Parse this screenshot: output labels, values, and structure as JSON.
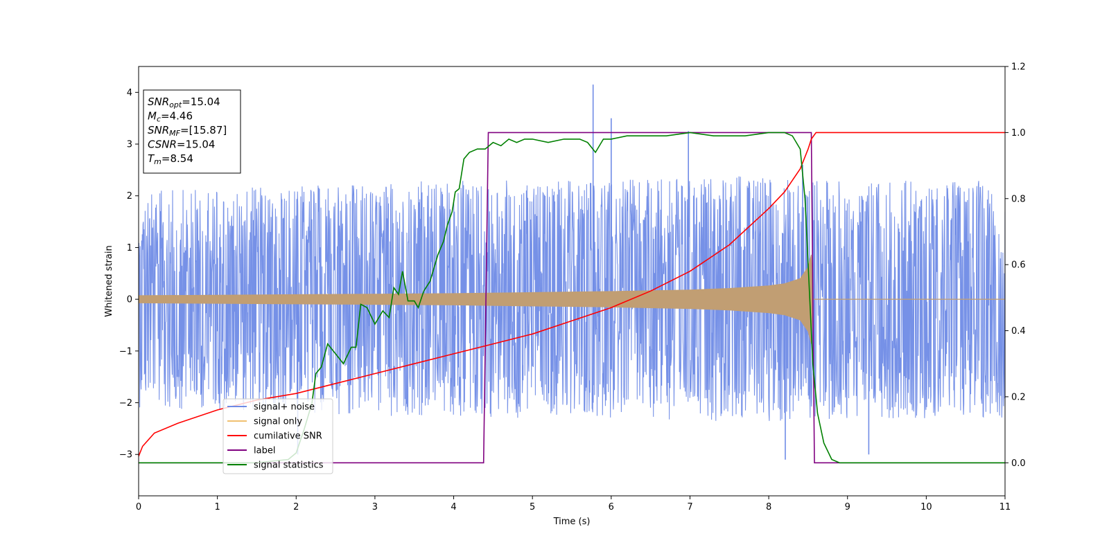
{
  "chart_data": {
    "type": "line",
    "xlabel": "Time (s)",
    "ylabel": "Whitened strain",
    "xlim": [
      0,
      11
    ],
    "ylim": [
      -3.8,
      4.5
    ],
    "y2lim": [
      -0.1,
      1.2
    ],
    "x_ticks": [
      0,
      1,
      2,
      3,
      4,
      5,
      6,
      7,
      8,
      9,
      10,
      11
    ],
    "y_ticks": [
      -3,
      -2,
      -1,
      0,
      1,
      2,
      3,
      4
    ],
    "y2_ticks": [
      0.0,
      0.2,
      0.4,
      0.6,
      0.8,
      1.0,
      1.2
    ],
    "x_tick_labels": [
      "0",
      "1",
      "2",
      "3",
      "4",
      "5",
      "6",
      "7",
      "8",
      "9",
      "10",
      "11"
    ],
    "y_tick_labels": [
      "−3",
      "−2",
      "−1",
      "0",
      "1",
      "2",
      "3",
      "4"
    ],
    "y2_tick_labels": [
      "0.0",
      "0.2",
      "0.4",
      "0.6",
      "0.8",
      "1.0",
      "1.2"
    ],
    "info_box": [
      {
        "base": "SNR",
        "sub": "opt",
        "value": "=15.04"
      },
      {
        "base": "M",
        "sub": "c",
        "value": "=4.46"
      },
      {
        "base": "SNR",
        "sub": "MF",
        "value": "=[15.87]"
      },
      {
        "base": "CSNR",
        "sub": "",
        "value": "=15.04"
      },
      {
        "base": "T",
        "sub": "m",
        "value": "=8.54"
      }
    ],
    "legend": {
      "placement": "lower-left",
      "entries": [
        {
          "label": "signal+ noise",
          "color": "#6f8be6"
        },
        {
          "label": "signal only",
          "color": "#f0c070"
        },
        {
          "label": "cumilative SNR",
          "color": "#ff0000"
        },
        {
          "label": "label",
          "color": "#800080"
        },
        {
          "label": "signal statistics",
          "color": "#008000"
        }
      ]
    },
    "series": [
      {
        "name": "signal+ noise",
        "axis": "left",
        "color": "#6f8be6",
        "kind": "noise_band",
        "envelope": [
          [
            0,
            2.1
          ],
          [
            2,
            2.2
          ],
          [
            4,
            2.3
          ],
          [
            6,
            2.3
          ],
          [
            8,
            2.4
          ],
          [
            9,
            2.3
          ],
          [
            11,
            2.3
          ]
        ],
        "spikes": [
          [
            5.77,
            4.15
          ],
          [
            5.77,
            -2.0
          ],
          [
            6.0,
            3.5
          ],
          [
            6.98,
            3.25
          ],
          [
            8.43,
            2.6
          ],
          [
            8.21,
            -3.1
          ],
          [
            9.27,
            -3.0
          ],
          [
            2.02,
            -3.0
          ]
        ]
      },
      {
        "name": "signal only",
        "axis": "left",
        "color": "#c19e73",
        "kind": "chirp_envelope",
        "x": [
          0,
          1,
          2,
          3,
          4,
          5,
          6,
          7,
          7.5,
          8,
          8.2,
          8.4,
          8.5,
          8.54,
          8.56,
          11
        ],
        "amplitude": [
          0.07,
          0.08,
          0.09,
          0.1,
          0.11,
          0.13,
          0.15,
          0.18,
          0.21,
          0.26,
          0.3,
          0.4,
          0.62,
          0.86,
          0.0,
          0.0
        ]
      },
      {
        "name": "cumilative SNR",
        "axis": "right",
        "color": "#ff0000",
        "x": [
          0.0,
          0.05,
          0.2,
          0.5,
          1.0,
          1.5,
          2.0,
          2.5,
          3.0,
          3.5,
          4.0,
          4.5,
          5.0,
          5.5,
          6.0,
          6.5,
          7.0,
          7.5,
          8.0,
          8.2,
          8.4,
          8.5,
          8.54,
          8.6,
          11.0
        ],
        "y": [
          0.02,
          0.05,
          0.09,
          0.12,
          0.16,
          0.19,
          0.21,
          0.24,
          0.27,
          0.3,
          0.33,
          0.36,
          0.39,
          0.43,
          0.47,
          0.52,
          0.58,
          0.66,
          0.77,
          0.82,
          0.89,
          0.95,
          0.98,
          1.0,
          1.0
        ]
      },
      {
        "name": "label",
        "axis": "right",
        "color": "#800080",
        "x": [
          0,
          4.38,
          4.44,
          8.54,
          8.58,
          11
        ],
        "y": [
          0,
          0,
          1,
          1,
          0,
          0
        ]
      },
      {
        "name": "signal statistics",
        "axis": "right",
        "color": "#008000",
        "x": [
          0,
          1.5,
          1.9,
          2.0,
          2.1,
          2.2,
          2.25,
          2.32,
          2.4,
          2.5,
          2.6,
          2.7,
          2.76,
          2.82,
          2.9,
          3.0,
          3.1,
          3.18,
          3.24,
          3.3,
          3.35,
          3.42,
          3.5,
          3.55,
          3.62,
          3.7,
          3.8,
          3.87,
          3.92,
          3.98,
          4.02,
          4.07,
          4.13,
          4.2,
          4.3,
          4.4,
          4.5,
          4.6,
          4.7,
          4.8,
          4.9,
          5.0,
          5.2,
          5.4,
          5.6,
          5.7,
          5.8,
          5.9,
          6.0,
          6.2,
          6.5,
          6.7,
          7.0,
          7.3,
          7.5,
          7.7,
          8.0,
          8.2,
          8.3,
          8.4,
          8.46,
          8.52,
          8.56,
          8.62,
          8.7,
          8.8,
          8.9,
          9.0,
          11
        ],
        "y": [
          0.0,
          0.0,
          0.01,
          0.03,
          0.1,
          0.18,
          0.27,
          0.29,
          0.36,
          0.33,
          0.3,
          0.35,
          0.35,
          0.48,
          0.47,
          0.42,
          0.46,
          0.44,
          0.53,
          0.51,
          0.58,
          0.49,
          0.49,
          0.47,
          0.52,
          0.55,
          0.63,
          0.67,
          0.72,
          0.76,
          0.82,
          0.83,
          0.92,
          0.94,
          0.95,
          0.95,
          0.97,
          0.96,
          0.98,
          0.97,
          0.98,
          0.98,
          0.97,
          0.98,
          0.98,
          0.97,
          0.94,
          0.98,
          0.98,
          0.99,
          0.99,
          0.99,
          1.0,
          0.99,
          0.99,
          0.99,
          1.0,
          1.0,
          0.99,
          0.95,
          0.8,
          0.5,
          0.3,
          0.15,
          0.06,
          0.01,
          0.0,
          0.0,
          0.0
        ]
      }
    ]
  }
}
